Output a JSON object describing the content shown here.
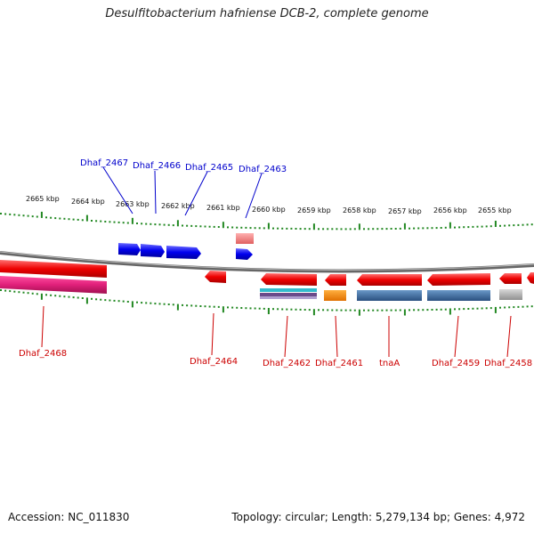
{
  "title": "Desulfitobacterium hafniense DCB-2, complete genome",
  "footer": {
    "accession": "Accession: NC_011830",
    "summary": "Topology: circular; Length: 5,279,134 bp; Genes: 4,972"
  },
  "kbp_labels": [
    "2665 kbp",
    "2664 kbp",
    "2663 kbp",
    "2662 kbp",
    "2661 kbp",
    "2660 kbp",
    "2659 kbp",
    "2658 kbp",
    "2657 kbp",
    "2656 kbp",
    "2655 kbp"
  ],
  "genes_top": [
    "Dhaf_2467",
    "Dhaf_2466",
    "Dhaf_2465",
    "Dhaf_2463"
  ],
  "genes_bottom": [
    "Dhaf_2468",
    "Dhaf_2464",
    "Dhaf_2462",
    "Dhaf_2461",
    "tnaA",
    "Dhaf_2459",
    "Dhaf_2458"
  ],
  "colors": {
    "forward_label": "#0000cc",
    "reverse_label": "#cc0000",
    "scale": "#228822",
    "backbone": "#777777",
    "gene_forward": "#0000ee",
    "gene_reverse": "#ee0000",
    "pseudo_pink": "#f08080",
    "magenta": "#e0207a",
    "orange": "#ff8800",
    "steel": "#3a70a8",
    "gray": "#aaaaaa",
    "cyan": "#33bbcc",
    "purple": "#6a4a8a"
  }
}
